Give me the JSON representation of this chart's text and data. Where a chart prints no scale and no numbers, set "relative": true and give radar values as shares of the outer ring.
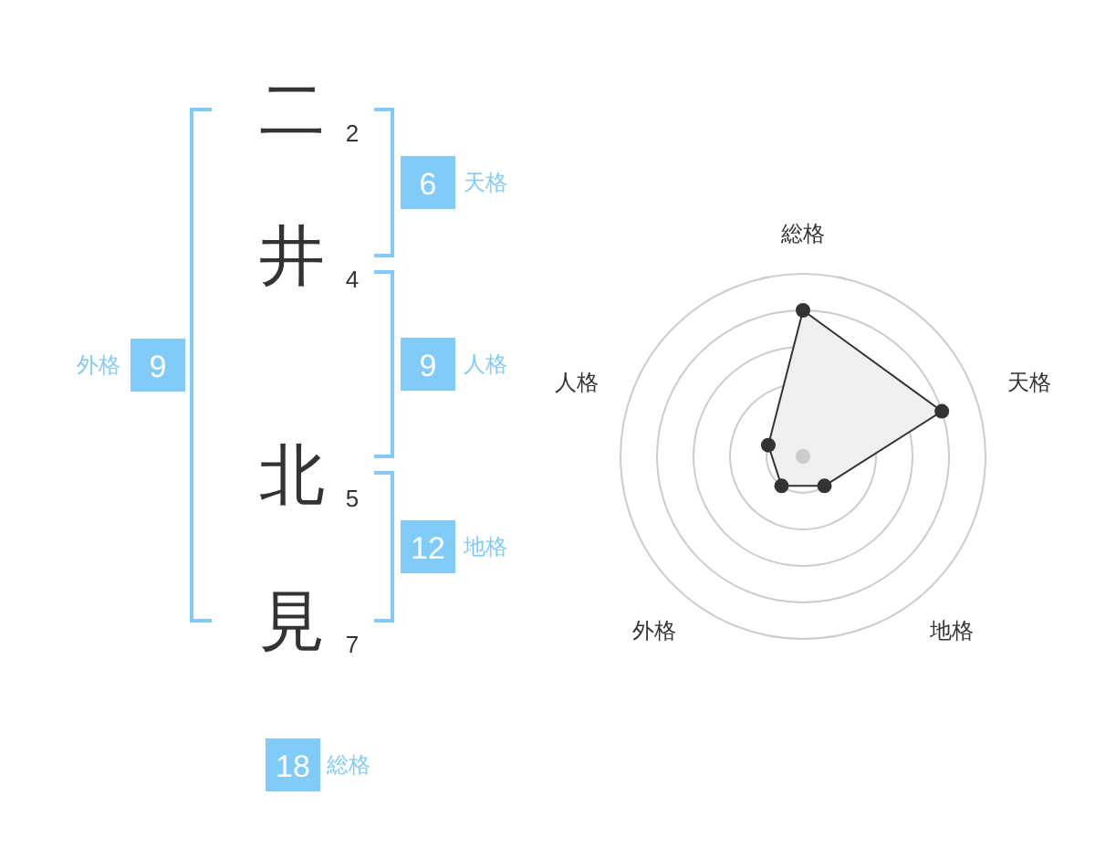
{
  "chart_data": [
    {
      "type": "other",
      "categories": [
        "二",
        "井",
        "北",
        "見"
      ],
      "values": [
        2,
        4,
        5,
        7
      ],
      "data_labels": true
    },
    {
      "type": "other",
      "categories": [
        "天格",
        "人格",
        "地格",
        "外格",
        "総格"
      ],
      "values": [
        6,
        9,
        12,
        9,
        18
      ],
      "data_labels": true,
      "color": "#80cbf8"
    },
    {
      "type": "radar",
      "categories": [
        "総格",
        "天格",
        "地格",
        "外格",
        "人格"
      ],
      "relative": true,
      "grid": true,
      "marker": "circle",
      "series": [
        {
          "color": "#333333",
          "values": [
            0.8,
            0.8,
            0.2,
            0.2,
            0.2
          ]
        }
      ]
    }
  ]
}
